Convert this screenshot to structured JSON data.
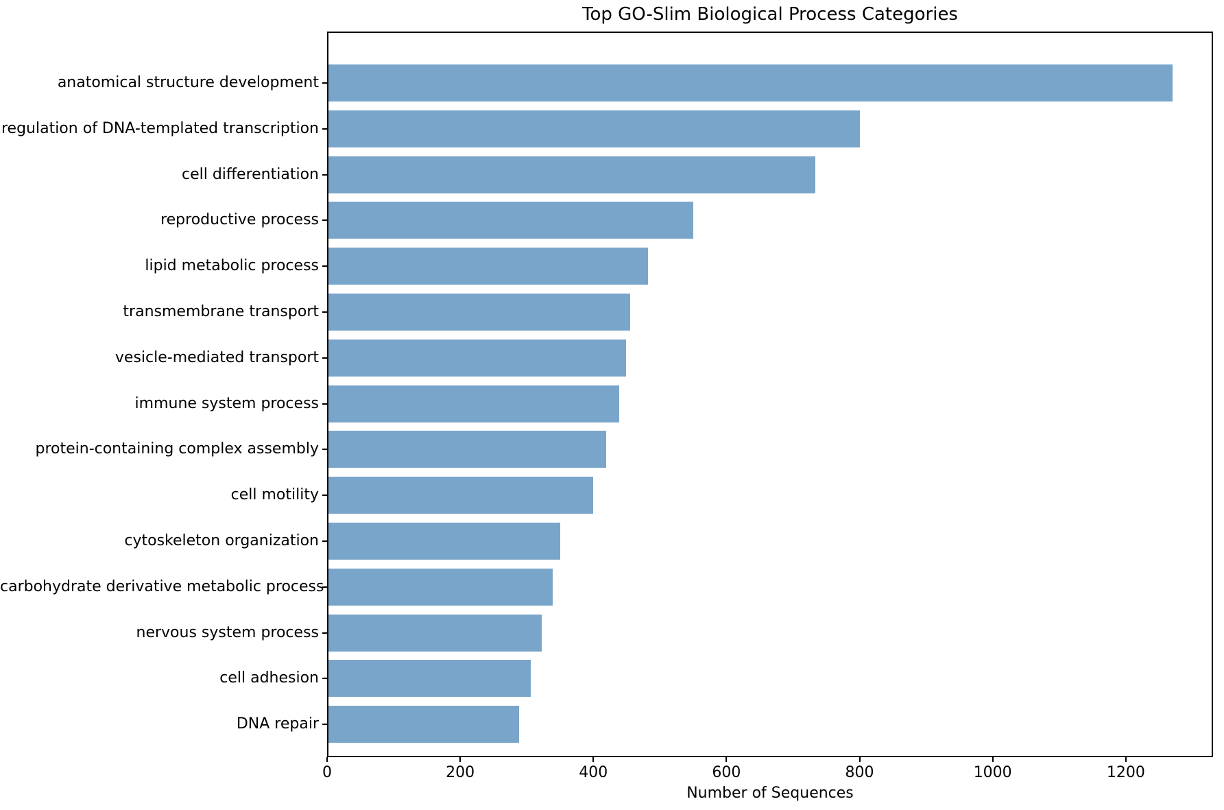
{
  "chart_data": {
    "type": "bar",
    "orientation": "horizontal",
    "title": "Top GO-Slim Biological Process Categories",
    "xlabel": "Number of Sequences",
    "ylabel": "",
    "categories": [
      "anatomical structure development",
      "regulation of DNA-templated transcription",
      "cell differentiation",
      "reproductive process",
      "lipid metabolic process",
      "transmembrane transport",
      "vesicle-mediated transport",
      "immune system process",
      "protein-containing complex assembly",
      "cell motility",
      "cytoskeleton organization",
      "carbohydrate derivative metabolic process",
      "nervous system process",
      "cell adhesion",
      "DNA repair"
    ],
    "values": [
      1268,
      798,
      731,
      548,
      480,
      453,
      447,
      437,
      417,
      398,
      348,
      337,
      320,
      304,
      286
    ],
    "xticks": [
      0,
      200,
      400,
      600,
      800,
      1000,
      1200
    ],
    "xlim": [
      0,
      1331
    ],
    "grid": false,
    "legend": null,
    "bar_color": "#7AA5CA",
    "axis_color": "#000000",
    "text_color": "#000000"
  }
}
